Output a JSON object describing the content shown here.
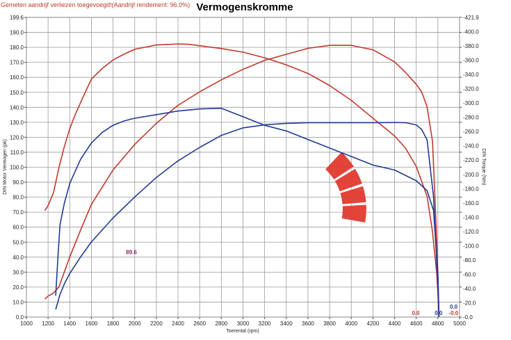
{
  "chart_data": {
    "type": "line",
    "title": "Vermogenskromme",
    "note": "Gemeten aandrijf verliezen toegevoegd!(Aandrijf rendement: 96.0%)",
    "xlabel": "Toerental (rpm)",
    "ylabel": "DIN Motor Vermogen (pk)",
    "y2label": "DIN Torque (Nm)",
    "xlim": [
      1000,
      5000
    ],
    "ylim": [
      0,
      199.6
    ],
    "y2lim": [
      0,
      421.9
    ],
    "grid": true,
    "x_ticks": [
      "1000",
      "1200",
      "1400",
      "1600",
      "1800",
      "2000",
      "2200",
      "2400",
      "2600",
      "2800",
      "3000",
      "3200",
      "3400",
      "3600",
      "3800",
      "4000",
      "4200",
      "4400",
      "4600",
      "4800",
      "5000"
    ],
    "y_ticks": [
      "0.0",
      "10.0",
      "20.0",
      "30.0",
      "40.0",
      "50.0",
      "60.0",
      "70.0",
      "80.0",
      "90.0",
      "100.0",
      "110.0",
      "120.0",
      "130.0",
      "140.0",
      "150.0",
      "160.0",
      "170.0",
      "180.0",
      "190.0",
      "199.6"
    ],
    "y2_ticks": [
      "-0.0",
      "-20.0",
      "-40.0",
      "-60.0",
      "-80.0",
      "-100.0",
      "-120.0",
      "-140.0",
      "-160.0",
      "-180.0",
      "-200.0",
      "-220.0",
      "-240.0",
      "-260.0",
      "-280.0",
      "-300.0",
      "-320.0",
      "-340.0",
      "-360.0",
      "-380.0",
      "-400.0",
      "-421.9"
    ],
    "series": [
      {
        "axis": "y2",
        "color": "#c0392b",
        "x": [
          1170,
          1200,
          1250,
          1300,
          1350,
          1400,
          1450,
          1500,
          1600,
          1700,
          1800,
          1900,
          2000,
          2200,
          2400,
          2500,
          2600,
          2800,
          3000,
          3200,
          3400,
          3600,
          3800,
          4000,
          4200,
          4400,
          4500,
          4600,
          4700,
          4750,
          4790,
          4810
        ],
        "y": [
          150,
          157,
          175,
          210,
          240,
          265,
          285,
          302,
          335,
          350,
          362,
          370,
          377,
          383,
          384.5,
          384,
          382,
          378,
          373,
          365,
          355,
          343,
          326,
          305,
          280,
          255,
          238,
          212,
          170,
          120,
          60,
          5
        ]
      },
      {
        "axis": "y",
        "color": "#c0392b",
        "x": [
          1170,
          1200,
          1250,
          1300,
          1350,
          1400,
          1500,
          1600,
          1800,
          2000,
          2200,
          2400,
          2600,
          2800,
          3000,
          3200,
          3400,
          3600,
          3800,
          4000,
          4200,
          4400,
          4500,
          4600,
          4650,
          4700,
          4750,
          4790,
          4810
        ],
        "y": [
          12,
          14,
          16,
          20,
          30,
          40,
          58,
          75,
          98,
          115,
          129,
          141,
          150,
          158,
          165,
          171,
          175,
          179,
          181,
          181,
          178,
          170,
          163,
          155,
          150,
          140,
          117,
          50,
          3
        ]
      },
      {
        "axis": "y2",
        "color": "#1f3a93",
        "x": [
          1270,
          1290,
          1310,
          1350,
          1400,
          1500,
          1600,
          1700,
          1800,
          1900,
          2000,
          2200,
          2400,
          2600,
          2800,
          3000,
          3200,
          3400,
          3600,
          3800,
          4000,
          4200,
          4400,
          4600,
          4700,
          4760,
          4800,
          4810
        ],
        "y": [
          30,
          82,
          130,
          160,
          188,
          222,
          245,
          260,
          270,
          276,
          280,
          285,
          290,
          293,
          294,
          282,
          270,
          262,
          250,
          238,
          226,
          214,
          207,
          192,
          178,
          150,
          60,
          0
        ]
      },
      {
        "axis": "y",
        "color": "#1f3a93",
        "x": [
          1270,
          1290,
          1310,
          1350,
          1400,
          1500,
          1600,
          1800,
          2000,
          2200,
          2400,
          2600,
          2800,
          3000,
          3200,
          3400,
          3600,
          3800,
          4000,
          4200,
          4400,
          4500,
          4600,
          4650,
          4700,
          4760,
          4800,
          4810
        ],
        "y": [
          5,
          10,
          15,
          22,
          29,
          40,
          50,
          66,
          80,
          93,
          104,
          113,
          121,
          126,
          128,
          129,
          129.5,
          129.5,
          129.5,
          129.5,
          129.6,
          129.5,
          128,
          125,
          118,
          80,
          20,
          0
        ]
      }
    ],
    "annotations": [
      {
        "text": "89.6",
        "x": 1920,
        "y": 42,
        "color": "#8e2466"
      },
      {
        "text": "0.0",
        "x": 4560,
        "y": 1.5,
        "color": "#c0392b"
      },
      {
        "text": "0.0",
        "x": 4770,
        "y": 1.5,
        "color": "#1f3a93"
      },
      {
        "text": "-0.0",
        "x": 4900,
        "y": 1.5,
        "color": "#c0392b"
      },
      {
        "text": "0.0",
        "x": 4910,
        "y": 5.5,
        "color": "#1f3a93"
      }
    ]
  },
  "logo_color": "#e03a2f"
}
